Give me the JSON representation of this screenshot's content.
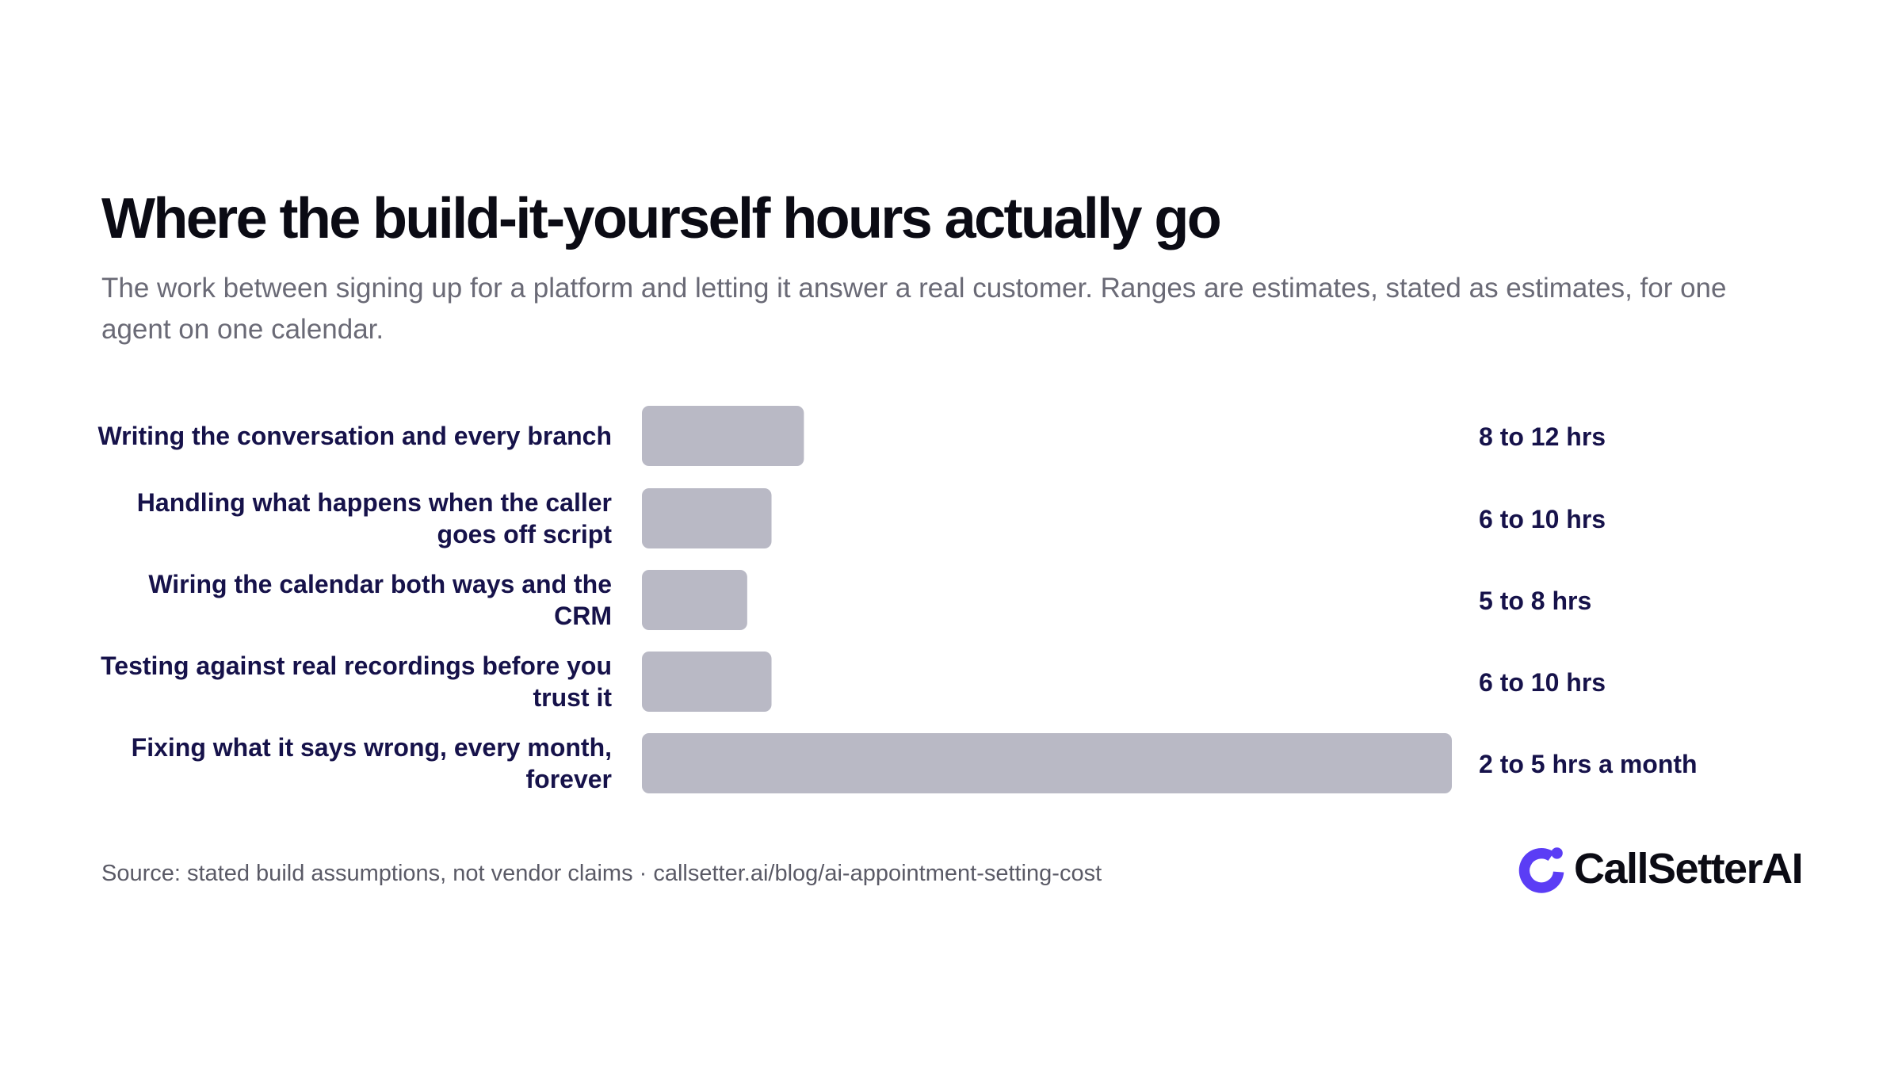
{
  "header": {
    "title": "Where the build-it-yourself hours actually go",
    "subtitle": "The work between signing up for a platform and letting it answer a real customer. Ranges are estimates, stated as estimates, for one agent on one calendar."
  },
  "chart_data": {
    "type": "bar",
    "orientation": "horizontal",
    "categories": [
      "Writing the conversation and every branch",
      "Handling what happens when the caller goes off script",
      "Wiring the calendar both ways and the CRM",
      "Testing against real recordings before you trust it",
      "Fixing what it says wrong, every month, forever"
    ],
    "category_lines": [
      [
        "Writing the conversation and every branch"
      ],
      [
        "Handling what happens when the caller",
        "goes off script"
      ],
      [
        "Wiring the calendar both ways and the",
        "CRM"
      ],
      [
        "Testing against real recordings before you",
        "trust it"
      ],
      [
        "Fixing what it says wrong, every month,",
        "forever"
      ]
    ],
    "values": [
      10,
      8,
      6.5,
      8,
      50
    ],
    "value_labels": [
      "8 to 12 hrs",
      "6 to 10 hrs",
      "5 to 8 hrs",
      "6 to 10 hrs",
      "2 to 5 hrs a month"
    ],
    "title": "Where the build-it-yourself hours actually go",
    "xlabel": "",
    "ylabel": "",
    "xlim": [
      0,
      50
    ],
    "grid": false,
    "legend": "none",
    "bar_color": "#b9b9c5",
    "label_color": "#16124a"
  },
  "footer": {
    "source": "Source: stated build assumptions, not vendor claims · callsetter.ai/blog/ai-appointment-setting-cost"
  },
  "brand": {
    "name": "CallSetterAI",
    "icon": "callsetter-logo-icon",
    "color": "#5b3df5"
  }
}
